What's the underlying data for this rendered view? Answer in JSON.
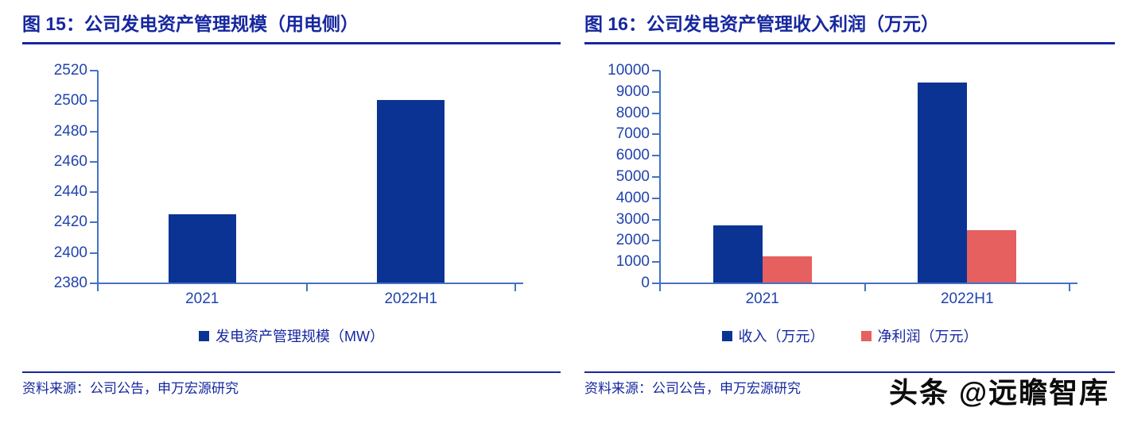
{
  "figures": [
    {
      "title": "图 15：公司发电资产管理规模（用电侧）",
      "source": "资料来源：公司公告，申万宏源研究"
    },
    {
      "title": "图 16：公司发电资产管理收入利润（万元）",
      "source": "资料来源：公司公告，申万宏源研究"
    }
  ],
  "watermark": {
    "text": "头条 @远瞻智库"
  },
  "colors": {
    "title_blue": "#16279f",
    "label_blue": "#2143ae",
    "axis_blue": "#4472c4",
    "bar_blue": "#0a3393",
    "bar_red": "#e5605f",
    "watermark_black": "#0b0b0b"
  },
  "chart_data": [
    {
      "type": "bar",
      "title": "图 15：公司发电资产管理规模（用电侧）",
      "categories": [
        "2021",
        "2022H1"
      ],
      "series": [
        {
          "name": "发电资产管理规模（MW）",
          "color": "#0a3393",
          "values": [
            2425,
            2500
          ]
        }
      ],
      "xlabel": "",
      "ylabel": "",
      "ylim": [
        2380,
        2520
      ],
      "ytick_step": 20,
      "yticks": [
        "2380",
        "2400",
        "2420",
        "2440",
        "2460",
        "2480",
        "2500",
        "2520"
      ],
      "grid": false,
      "legend_position": "bottom"
    },
    {
      "type": "bar",
      "title": "图 16：公司发电资产管理收入利润（万元）",
      "categories": [
        "2021",
        "2022H1"
      ],
      "series": [
        {
          "name": "收入（万元）",
          "color": "#0a3393",
          "values": [
            2700,
            9400
          ]
        },
        {
          "name": "净利润（万元）",
          "color": "#e5605f",
          "values": [
            1250,
            2450
          ]
        }
      ],
      "xlabel": "",
      "ylabel": "",
      "ylim": [
        0,
        10000
      ],
      "ytick_step": 1000,
      "yticks": [
        "0",
        "1000",
        "2000",
        "3000",
        "4000",
        "5000",
        "6000",
        "7000",
        "8000",
        "9000",
        "10000"
      ],
      "grid": false,
      "legend_position": "bottom"
    }
  ]
}
